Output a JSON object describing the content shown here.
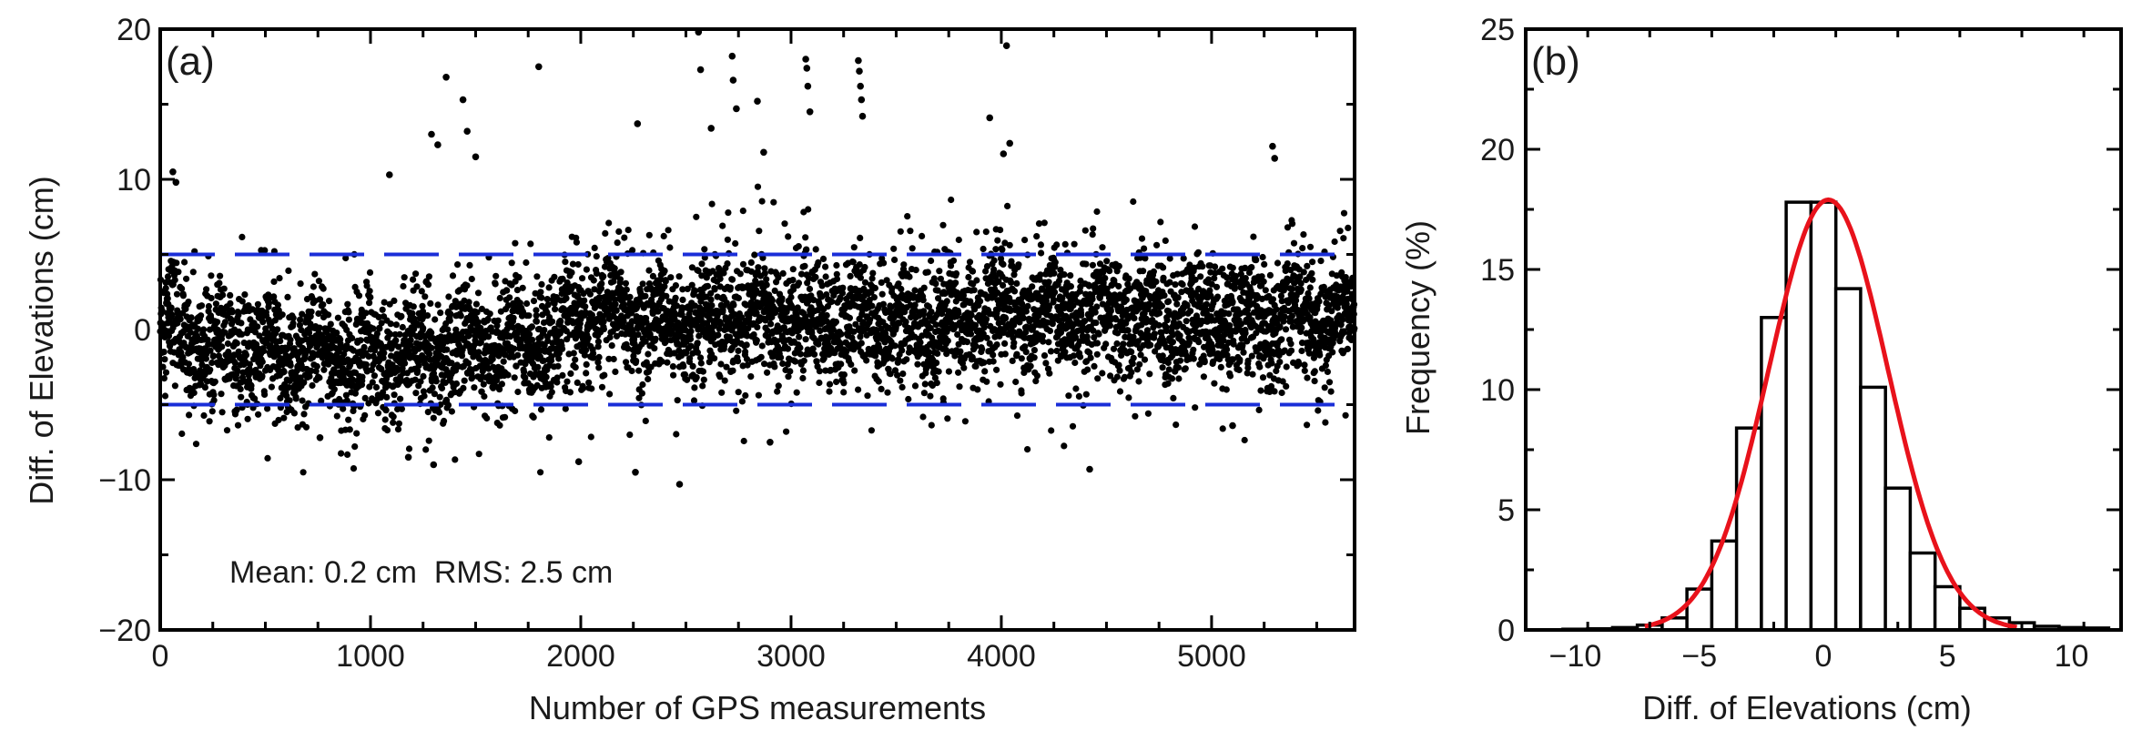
{
  "chart_data": [
    {
      "panel": "(a)",
      "type": "scatter",
      "xlabel": "Number of GPS measurements",
      "ylabel": "Diff. of Elevations (cm)",
      "xlim": [
        0,
        5680
      ],
      "ylim": [
        -20,
        20
      ],
      "xticks": [
        0,
        1000,
        2000,
        3000,
        4000,
        5000
      ],
      "yticks": [
        -20,
        -10,
        0,
        10,
        20
      ],
      "ytick_labels": [
        "−20",
        "−10",
        "0",
        "10",
        "20"
      ],
      "annotation": "Mean: 0.2 cm  RMS: 2.5 cm",
      "statistics": {
        "mean_cm": 0.2,
        "rms_cm": 2.5
      },
      "reference_lines": [
        {
          "y": 5,
          "style": "dashed",
          "color": "#1a2ed8"
        },
        {
          "y": -5,
          "style": "dashed",
          "color": "#1a2ed8"
        }
      ],
      "point_color": "#000000",
      "n_points": 5680,
      "generator": {
        "trend": [
          [
            0,
            0.5
          ],
          [
            300,
            -1.5
          ],
          [
            900,
            -1.8
          ],
          [
            1500,
            -1.2
          ],
          [
            1900,
            -0.5
          ],
          [
            2100,
            1.5
          ],
          [
            2400,
            0.3
          ],
          [
            2800,
            0.8
          ],
          [
            3200,
            0.5
          ],
          [
            3600,
            0.3
          ],
          [
            4000,
            1.2
          ],
          [
            4500,
            0.8
          ],
          [
            5000,
            0.5
          ],
          [
            5680,
            1.0
          ]
        ],
        "sigma_cm": 2.0
      },
      "outliers": [
        {
          "x": 60,
          "y": 10.5
        },
        {
          "x": 75,
          "y": 9.8
        },
        {
          "x": 1090,
          "y": 10.3
        },
        {
          "x": 1290,
          "y": 13.0
        },
        {
          "x": 1320,
          "y": 12.3
        },
        {
          "x": 1360,
          "y": 16.8
        },
        {
          "x": 1440,
          "y": 15.3
        },
        {
          "x": 1460,
          "y": 13.2
        },
        {
          "x": 1500,
          "y": 11.5
        },
        {
          "x": 1800,
          "y": 17.5
        },
        {
          "x": 2270,
          "y": 13.7
        },
        {
          "x": 2560,
          "y": 19.8
        },
        {
          "x": 2570,
          "y": 17.3
        },
        {
          "x": 2620,
          "y": 13.4
        },
        {
          "x": 2720,
          "y": 18.2
        },
        {
          "x": 2725,
          "y": 16.6
        },
        {
          "x": 2740,
          "y": 14.7
        },
        {
          "x": 2840,
          "y": 15.2
        },
        {
          "x": 2870,
          "y": 11.8
        },
        {
          "x": 3070,
          "y": 18.0
        },
        {
          "x": 3075,
          "y": 17.4
        },
        {
          "x": 3080,
          "y": 16.2
        },
        {
          "x": 3090,
          "y": 14.5
        },
        {
          "x": 3320,
          "y": 17.9
        },
        {
          "x": 3325,
          "y": 17.2
        },
        {
          "x": 3330,
          "y": 16.2
        },
        {
          "x": 3335,
          "y": 15.3
        },
        {
          "x": 3340,
          "y": 14.2
        },
        {
          "x": 3945,
          "y": 14.1
        },
        {
          "x": 4010,
          "y": 11.7
        },
        {
          "x": 4025,
          "y": 18.9
        },
        {
          "x": 4040,
          "y": 12.4
        },
        {
          "x": 5290,
          "y": 12.2
        },
        {
          "x": 5300,
          "y": 11.4
        },
        {
          "x": 2260,
          "y": -9.5
        },
        {
          "x": 2470,
          "y": -10.3
        },
        {
          "x": 1990,
          "y": -8.8
        },
        {
          "x": 1300,
          "y": -9.0
        },
        {
          "x": 1180,
          "y": -8.5
        },
        {
          "x": 4420,
          "y": -9.3
        },
        {
          "x": 2900,
          "y": -7.5
        },
        {
          "x": 760,
          "y": -7.2
        },
        {
          "x": 5100,
          "y": -6.4
        }
      ]
    },
    {
      "panel": "(b)",
      "type": "bar",
      "xlabel": "Diff. of Elevations (cm)",
      "ylabel": "Frequency (%)",
      "xlim": [
        -12,
        12
      ],
      "ylim": [
        0,
        25
      ],
      "xticks": [
        -10,
        -5,
        0,
        5,
        10
      ],
      "xtick_labels": [
        "−10",
        "−5",
        "0",
        "5",
        "10"
      ],
      "yticks": [
        0,
        5,
        10,
        15,
        20,
        25
      ],
      "bin_width": 1,
      "bins": [
        {
          "x": -10,
          "value": 0.03
        },
        {
          "x": -9,
          "value": 0.05
        },
        {
          "x": -8,
          "value": 0.1
        },
        {
          "x": -7,
          "value": 0.2
        },
        {
          "x": -6,
          "value": 0.5
        },
        {
          "x": -5,
          "value": 1.7
        },
        {
          "x": -4,
          "value": 3.7
        },
        {
          "x": -3,
          "value": 8.4
        },
        {
          "x": -2,
          "value": 13.0
        },
        {
          "x": -1,
          "value": 17.8
        },
        {
          "x": 0,
          "value": 17.8
        },
        {
          "x": 1,
          "value": 14.2
        },
        {
          "x": 2,
          "value": 10.1
        },
        {
          "x": 3,
          "value": 5.9
        },
        {
          "x": 4,
          "value": 3.2
        },
        {
          "x": 5,
          "value": 1.8
        },
        {
          "x": 6,
          "value": 0.9
        },
        {
          "x": 7,
          "value": 0.5
        },
        {
          "x": 8,
          "value": 0.3
        },
        {
          "x": 9,
          "value": 0.15
        },
        {
          "x": 10,
          "value": 0.1
        },
        {
          "x": 11,
          "value": 0.08
        }
      ],
      "fit_curve": {
        "type": "gaussian",
        "mean": 0.2,
        "sigma": 2.4,
        "peak": 17.9,
        "color": "#e8121b"
      },
      "bar_fill": "#ffffff",
      "bar_stroke": "#000000"
    }
  ]
}
